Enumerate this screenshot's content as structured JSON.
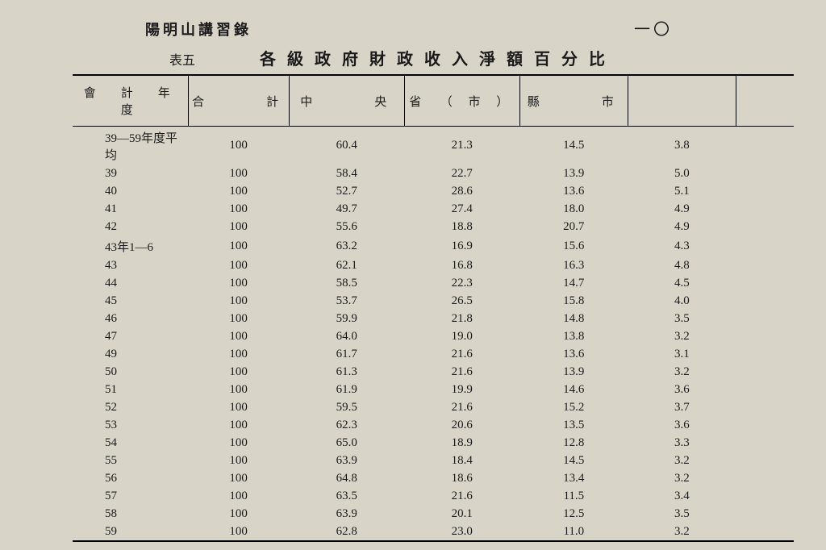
{
  "running_title": "陽明山講習錄",
  "page_number": "一〇",
  "table_label": "表五",
  "main_title": "各級政府財政收入淨額百分比",
  "columns": {
    "c1": "會　計　年　度",
    "c2": "合　　　計",
    "c3": "中　　　央",
    "c4": "省　（ 市 ）",
    "c5": "縣　　　市",
    "c6": ""
  },
  "rows": [
    {
      "y": "39—59年度平均",
      "a": "100",
      "b": "60.4",
      "c": "21.3",
      "d": "14.5",
      "e": "3.8"
    },
    {
      "y": "39",
      "a": "100",
      "b": "58.4",
      "c": "22.7",
      "d": "13.9",
      "e": "5.0"
    },
    {
      "y": "40",
      "a": "100",
      "b": "52.7",
      "c": "28.6",
      "d": "13.6",
      "e": "5.1"
    },
    {
      "y": "41",
      "a": "100",
      "b": "49.7",
      "c": "27.4",
      "d": "18.0",
      "e": "4.9"
    },
    {
      "y": "42",
      "a": "100",
      "b": "55.6",
      "c": "18.8",
      "d": "20.7",
      "e": "4.9"
    },
    {
      "y": "43年1—6",
      "a": "100",
      "b": "63.2",
      "c": "16.9",
      "d": "15.6",
      "e": "4.3"
    },
    {
      "y": "43",
      "a": "100",
      "b": "62.1",
      "c": "16.8",
      "d": "16.3",
      "e": "4.8"
    },
    {
      "y": "44",
      "a": "100",
      "b": "58.5",
      "c": "22.3",
      "d": "14.7",
      "e": "4.5"
    },
    {
      "y": "45",
      "a": "100",
      "b": "53.7",
      "c": "26.5",
      "d": "15.8",
      "e": "4.0"
    },
    {
      "y": "46",
      "a": "100",
      "b": "59.9",
      "c": "21.8",
      "d": "14.8",
      "e": "3.5"
    },
    {
      "y": "47",
      "a": "100",
      "b": "64.0",
      "c": "19.0",
      "d": "13.8",
      "e": "3.2"
    },
    {
      "y": "49",
      "a": "100",
      "b": "61.7",
      "c": "21.6",
      "d": "13.6",
      "e": "3.1"
    },
    {
      "y": "50",
      "a": "100",
      "b": "61.3",
      "c": "21.6",
      "d": "13.9",
      "e": "3.2"
    },
    {
      "y": "51",
      "a": "100",
      "b": "61.9",
      "c": "19.9",
      "d": "14.6",
      "e": "3.6"
    },
    {
      "y": "52",
      "a": "100",
      "b": "59.5",
      "c": "21.6",
      "d": "15.2",
      "e": "3.7"
    },
    {
      "y": "53",
      "a": "100",
      "b": "62.3",
      "c": "20.6",
      "d": "13.5",
      "e": "3.6"
    },
    {
      "y": "54",
      "a": "100",
      "b": "65.0",
      "c": "18.9",
      "d": "12.8",
      "e": "3.3"
    },
    {
      "y": "55",
      "a": "100",
      "b": "63.9",
      "c": "18.4",
      "d": "14.5",
      "e": "3.2"
    },
    {
      "y": "56",
      "a": "100",
      "b": "64.8",
      "c": "18.6",
      "d": "13.4",
      "e": "3.2"
    },
    {
      "y": "57",
      "a": "100",
      "b": "63.5",
      "c": "21.6",
      "d": "11.5",
      "e": "3.4"
    },
    {
      "y": "58",
      "a": "100",
      "b": "63.9",
      "c": "20.1",
      "d": "12.5",
      "e": "3.5"
    },
    {
      "y": "59",
      "a": "100",
      "b": "62.8",
      "c": "23.0",
      "d": "11.0",
      "e": "3.2"
    }
  ],
  "style": {
    "background_color": "#d8d5c8",
    "text_color": "#1a1a1a",
    "rule_color": "#000000",
    "body_font_size": 15,
    "title_font_size": 20,
    "col_widths_pct": [
      16,
      14,
      16,
      16,
      15,
      15,
      8
    ]
  }
}
